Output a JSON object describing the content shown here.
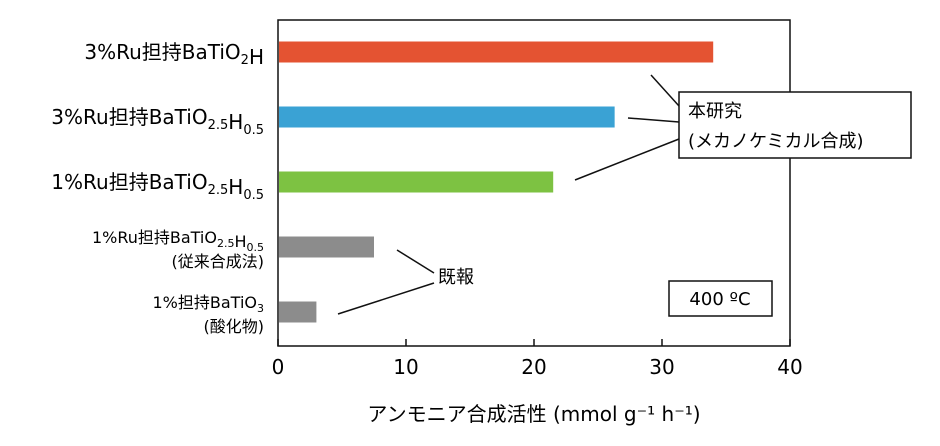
{
  "chart_data": {
    "type": "bar",
    "orientation": "horizontal",
    "categories": [
      {
        "line1": [
          "3%Ru担持BaTiO",
          {
            "sub": "2"
          },
          "H"
        ],
        "line2": ""
      },
      {
        "line1": [
          "3%Ru担持BaTiO",
          {
            "sub": "2.5"
          },
          "H",
          {
            "sub": "0.5"
          }
        ],
        "line2": ""
      },
      {
        "line1": [
          "1%Ru担持BaTiO",
          {
            "sub": "2.5"
          },
          "H",
          {
            "sub": "0.5"
          }
        ],
        "line2": ""
      },
      {
        "line1": [
          "1%Ru担持BaTiO",
          {
            "sub": "2.5"
          },
          "H",
          {
            "sub": "0.5"
          }
        ],
        "line2": "(従来合成法)"
      },
      {
        "line1": [
          "1%担持BaTiO",
          {
            "sub": "3"
          }
        ],
        "line2": "(酸化物)"
      }
    ],
    "values": [
      34.0,
      26.3,
      21.5,
      7.5,
      3.0
    ],
    "bar_colors": [
      "#e45332",
      "#3aa2d4",
      "#7dc242",
      "#8c8c8c",
      "#8c8c8c"
    ],
    "xlim": [
      0,
      40
    ],
    "xticks": [
      "0",
      "10",
      "20",
      "30",
      "40"
    ],
    "xlabel": "アンモニア合成活性 (mmol g⁻¹ h⁻¹)",
    "grid": false
  },
  "annotations": {
    "this_work_line1": "本研究",
    "this_work_line2": "(メカノケミカル合成)",
    "previous_report": "既報",
    "temperature": "400 ºC"
  }
}
